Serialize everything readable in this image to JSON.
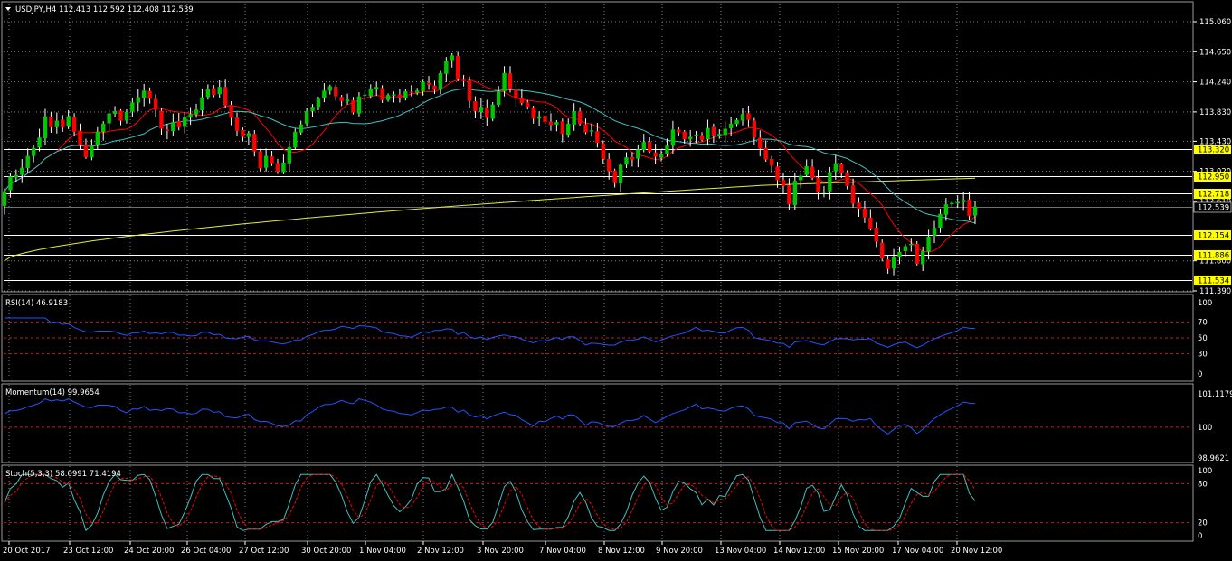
{
  "symbol_header": "USDJPY,H4  112.413 112.592 112.408 112.539",
  "colors": {
    "background": "#000000",
    "grid": "#808080",
    "bull_candle": "#00c800",
    "bear_candle": "#ff0000",
    "ma_fast": "#ff0000",
    "ma_mid": "#40c0c0",
    "ma_slow": "#e8e840",
    "hline": "#ffffff",
    "price_badge": "#ffff00",
    "indicator_line": "#2255ff",
    "level_line": "#c02020",
    "stoch_main": "#40c0c0",
    "stoch_signal": "#ff0000"
  },
  "main_axis": {
    "ticks": [
      "115.060",
      "114.650",
      "114.240",
      "113.830",
      "113.430",
      "113.020",
      "112.610",
      "111.800",
      "111.390"
    ],
    "current_price": "112.539",
    "level_badges": [
      "113.320",
      "112.950",
      "112.718",
      "112.154",
      "111.886",
      "111.534"
    ]
  },
  "rsi": {
    "title": "RSI(14) 46.9183",
    "ticks": [
      "70",
      "50",
      "30",
      "0"
    ],
    "top_tick": "100"
  },
  "momentum": {
    "title": "Momentum(14) 99.9654",
    "ticks": [
      "101.1179",
      "100",
      "98.9621"
    ]
  },
  "stoch": {
    "title": "Stoch(5,3,3) 58.0991 71.4194",
    "ticks": [
      "100",
      "80",
      "20",
      "0"
    ]
  },
  "time_axis": [
    "20 Oct 2017",
    "23 Oct 12:00",
    "24 Oct 20:00",
    "26 Oct 04:00",
    "27 Oct 12:00",
    "30 Oct 20:00",
    "1 Nov 04:00",
    "2 Nov 12:00",
    "3 Nov 20:00",
    "7 Nov 04:00",
    "8 Nov 12:00",
    "9 Nov 20:00",
    "13 Nov 04:00",
    "14 Nov 12:00",
    "15 Nov 20:00",
    "17 Nov 04:00",
    "20 Nov 12:00"
  ],
  "chart_data": {
    "type": "candlestick",
    "closes": [
      112.75,
      112.95,
      112.97,
      113.07,
      113.23,
      113.34,
      113.48,
      113.77,
      113.62,
      113.71,
      113.62,
      113.77,
      113.56,
      113.38,
      113.21,
      113.37,
      113.56,
      113.67,
      113.81,
      113.84,
      113.71,
      113.83,
      113.96,
      114.03,
      114.12,
      114.01,
      113.86,
      113.6,
      113.57,
      113.69,
      113.62,
      113.76,
      113.8,
      113.86,
      114.03,
      114.14,
      114.06,
      114.17,
      113.92,
      113.75,
      113.57,
      113.49,
      113.54,
      113.29,
      113.06,
      113.23,
      113.13,
      113.02,
      113.14,
      113.35,
      113.56,
      113.66,
      113.84,
      113.9,
      114.01,
      114.12,
      114.18,
      114.04,
      113.98,
      114.0,
      113.82,
      114.04,
      114.06,
      114.15,
      114.17,
      113.99,
      114.06,
      114.07,
      114.02,
      114.11,
      114.09,
      114.12,
      114.24,
      114.2,
      114.13,
      114.36,
      114.53,
      114.6,
      114.28,
      114.25,
      113.98,
      113.84,
      113.9,
      113.75,
      113.93,
      114.11,
      114.36,
      114.14,
      114.01,
      113.95,
      113.9,
      113.74,
      113.77,
      113.69,
      113.65,
      113.69,
      113.53,
      113.67,
      113.84,
      113.67,
      113.55,
      113.58,
      113.41,
      113.19,
      113.02,
      112.86,
      113.11,
      113.21,
      113.18,
      113.32,
      113.42,
      113.29,
      113.22,
      113.26,
      113.37,
      113.59,
      113.55,
      113.46,
      113.49,
      113.52,
      113.45,
      113.61,
      113.51,
      113.53,
      113.6,
      113.67,
      113.72,
      113.8,
      113.72,
      113.48,
      113.33,
      113.18,
      113.1,
      112.9,
      112.82,
      112.57,
      112.89,
      112.96,
      113.09,
      112.93,
      112.73,
      112.74,
      113.01,
      113.13,
      113.0,
      112.82,
      112.58,
      112.51,
      112.39,
      112.24,
      112.06,
      111.83,
      111.69,
      111.85,
      111.92,
      112.0,
      112.03,
      111.76,
      111.93,
      112.13,
      112.25,
      112.44,
      112.57,
      112.59,
      112.6,
      112.63,
      112.41,
      112.54
    ]
  }
}
